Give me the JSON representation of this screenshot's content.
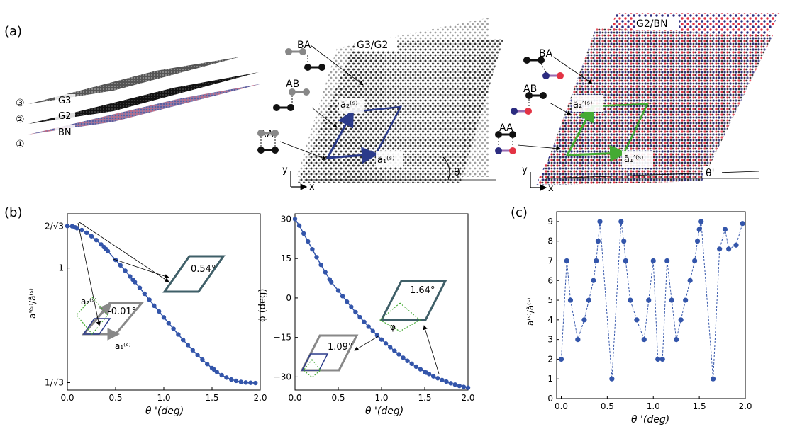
{
  "panel_labels": {
    "a": "(a)",
    "b": "(b)",
    "c": "(c)"
  },
  "stack": {
    "layers": [
      {
        "num": "③",
        "label": "G3"
      },
      {
        "num": "②",
        "label": "G2"
      },
      {
        "num": "①",
        "label": "BN"
      }
    ]
  },
  "moire_g3g2": {
    "title": "G3/G2",
    "stackings": [
      "BA",
      "AB",
      "AA"
    ],
    "vec_a1": "ã₁⁽ˢ⁾",
    "vec_a2": "ã₂⁽ˢ⁾",
    "angle": "θ",
    "axis_x": "x",
    "axis_y": "y"
  },
  "moire_g2bn": {
    "title": "G2/BN",
    "stackings": [
      "BA",
      "AB",
      "AA"
    ],
    "vec_a1": "ã₁′⁽ˢ⁾",
    "vec_a2": "ã₂′⁽ˢ⁾",
    "angle": "θ'",
    "axis_x": "x",
    "axis_y": "y"
  },
  "colors": {
    "series": "#3355aa",
    "cell_blue": "#2a3a8a",
    "cell_green": "#44aa33",
    "gray": "#888888",
    "bn_red": "#e33344",
    "bn_blue": "#2c2c80",
    "inset_teal": "#3f5f68"
  },
  "chart_data": [
    {
      "type": "line",
      "xlabel": "θ '(deg)",
      "ylabel": "a'⁽ˢ⁾/ã⁽ˢ⁾",
      "xlim": [
        0,
        2
      ],
      "ylim": [
        0.55,
        1.2
      ],
      "xticks": [
        0.0,
        0.5,
        1.0,
        1.5,
        2.0
      ],
      "xtick_labels": [
        "0.0",
        "0.5",
        "1.0",
        "1.5",
        "2.0"
      ],
      "yticks": [
        1.1547,
        1.0,
        0.57735
      ],
      "ytick_labels": [
        "2/√3",
        "1",
        "1/√3"
      ],
      "x": [
        0.0,
        0.05,
        0.08,
        0.1,
        0.15,
        0.2,
        0.25,
        0.3,
        0.35,
        0.38,
        0.4,
        0.42,
        0.5,
        0.55,
        0.6,
        0.65,
        0.68,
        0.7,
        0.75,
        0.8,
        0.85,
        0.9,
        0.95,
        1.0,
        1.05,
        1.1,
        1.15,
        1.2,
        1.25,
        1.3,
        1.35,
        1.4,
        1.45,
        1.5,
        1.52,
        1.55,
        1.6,
        1.65,
        1.7,
        1.75,
        1.8,
        1.85,
        1.9,
        1.95
      ],
      "y": [
        1.155,
        1.154,
        1.15,
        1.147,
        1.14,
        1.13,
        1.117,
        1.103,
        1.087,
        1.077,
        1.07,
        1.062,
        1.03,
        1.01,
        0.99,
        0.969,
        0.957,
        0.948,
        0.927,
        0.905,
        0.883,
        0.861,
        0.84,
        0.818,
        0.797,
        0.776,
        0.755,
        0.735,
        0.716,
        0.697,
        0.679,
        0.662,
        0.646,
        0.631,
        0.626,
        0.617,
        0.605,
        0.596,
        0.589,
        0.584,
        0.58,
        0.578,
        0.577,
        0.576
      ],
      "insets": {
        "inset1_angle": "0.54°",
        "inset2_angle": "-0.01°",
        "inset2_a1": "a₁⁽ˢ⁾",
        "inset2_a2": "a₂⁽ˢ⁾"
      }
    },
    {
      "type": "line",
      "xlabel": "θ '(deg)",
      "ylabel": "ϕ (deg)",
      "xlim": [
        0,
        2
      ],
      "ylim": [
        -35,
        32
      ],
      "xticks": [
        0.0,
        0.5,
        1.0,
        1.5,
        2.0
      ],
      "xtick_labels": [
        "0.0",
        "0.5",
        "1.0",
        "1.5",
        "2.0"
      ],
      "yticks": [
        30,
        15,
        0,
        -15,
        -30
      ],
      "ytick_labels": [
        "30",
        "15",
        "0",
        "−15",
        "−30"
      ],
      "x": [
        0.0,
        0.05,
        0.1,
        0.15,
        0.2,
        0.25,
        0.3,
        0.35,
        0.4,
        0.42,
        0.5,
        0.55,
        0.6,
        0.65,
        0.7,
        0.75,
        0.8,
        0.85,
        0.9,
        0.95,
        1.0,
        1.05,
        1.1,
        1.15,
        1.2,
        1.25,
        1.3,
        1.35,
        1.4,
        1.45,
        1.5,
        1.52,
        1.55,
        1.6,
        1.65,
        1.7,
        1.75,
        1.8,
        1.85,
        1.9,
        1.95,
        2.0
      ],
      "y": [
        30,
        27.5,
        24.5,
        21.5,
        18.5,
        15.5,
        12.6,
        9.8,
        7.1,
        6.0,
        2.8,
        0.7,
        -1.4,
        -3.4,
        -5.4,
        -7.3,
        -9.1,
        -10.9,
        -12.6,
        -14.2,
        -15.8,
        -17.3,
        -18.7,
        -20.1,
        -21.4,
        -22.7,
        -23.9,
        -25.0,
        -26.1,
        -27.1,
        -28.1,
        -28.4,
        -28.9,
        -29.8,
        -30.5,
        -31.2,
        -31.8,
        -32.4,
        -32.9,
        -33.4,
        -33.8,
        -34.1
      ],
      "insets": {
        "inset1_angle": "1.64°",
        "inset1_phi": "φ",
        "inset2_angle": "1.09°"
      }
    },
    {
      "type": "line",
      "xlabel": "θ '(deg)",
      "ylabel": "a⁽ˢ⁾/ã⁽ˢ⁾",
      "xlim": [
        -0.05,
        2.0
      ],
      "ylim": [
        0,
        9.5
      ],
      "xticks": [
        0.0,
        0.5,
        1.0,
        1.5,
        2.0
      ],
      "xtick_labels": [
        "0.0",
        "0.5",
        "1.0",
        "1.5",
        "2.0"
      ],
      "yticks": [
        0,
        1,
        2,
        3,
        4,
        5,
        6,
        7,
        8,
        9
      ],
      "ytick_labels": [
        "0",
        "1",
        "2",
        "3",
        "4",
        "5",
        "6",
        "7",
        "8",
        "9"
      ],
      "x": [
        0.0,
        0.06,
        0.1,
        0.18,
        0.25,
        0.3,
        0.35,
        0.38,
        0.4,
        0.42,
        0.55,
        0.65,
        0.68,
        0.7,
        0.75,
        0.82,
        0.9,
        0.95,
        1.0,
        1.05,
        1.1,
        1.15,
        1.2,
        1.25,
        1.3,
        1.35,
        1.4,
        1.45,
        1.48,
        1.5,
        1.52,
        1.65,
        1.72,
        1.78,
        1.82,
        1.9,
        1.97
      ],
      "y": [
        2,
        7,
        5,
        3,
        4,
        5,
        6,
        7,
        8,
        9,
        1,
        9,
        8,
        7,
        5,
        4,
        3,
        5,
        7,
        2,
        2,
        7,
        5,
        3,
        4,
        5,
        6,
        7,
        8,
        8.6,
        9,
        1,
        7.6,
        8.6,
        7.6,
        7.8,
        8.9
      ]
    }
  ]
}
